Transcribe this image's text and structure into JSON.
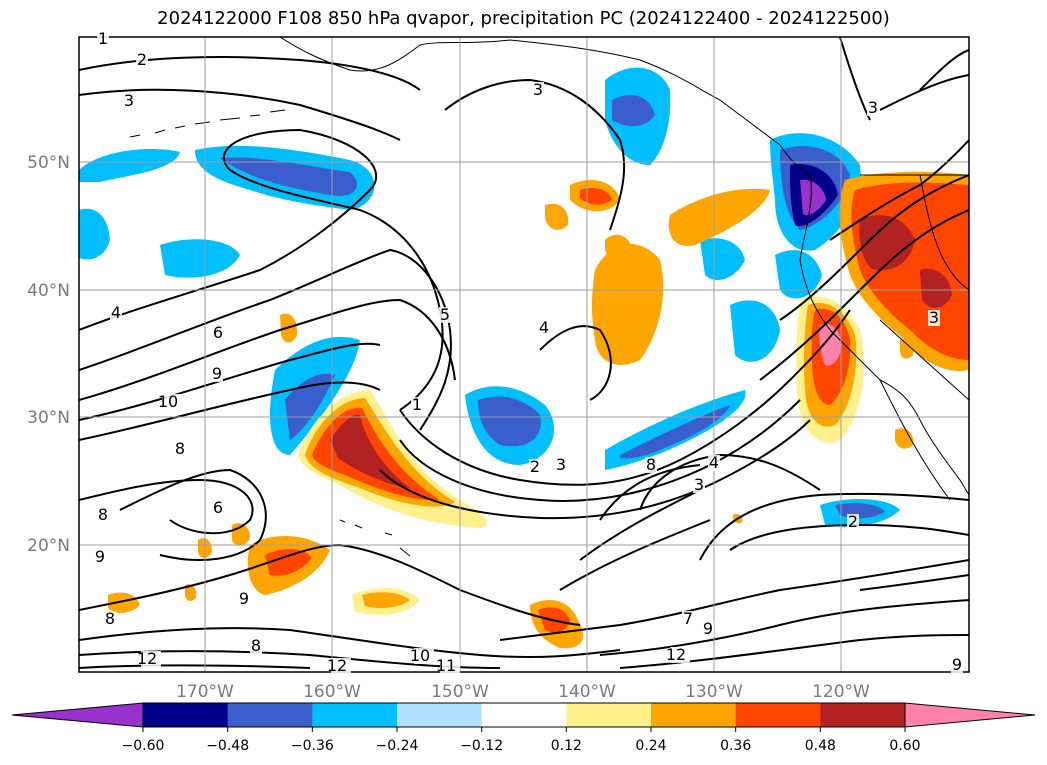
{
  "title": "2024122000 F108 850 hPa qvapor, precipitation PC (2024122400 - 2024122500)",
  "lat_ticks": [
    "50°N",
    "40°N",
    "30°N",
    "20°N"
  ],
  "lon_ticks": [
    "170°W",
    "160°W",
    "150°W",
    "140°W",
    "130°W",
    "120°W"
  ],
  "contour_labels": [
    "1",
    "2",
    "3",
    "3",
    "3",
    "4",
    "6",
    "9",
    "10",
    "5",
    "1",
    "2",
    "3",
    "4",
    "8",
    "6",
    "8",
    "9",
    "9",
    "8",
    "8",
    "10",
    "11",
    "12",
    "12",
    "9",
    "7",
    "3",
    "2",
    "3",
    "9",
    "12",
    "8",
    "4"
  ],
  "colorbar": {
    "ticks": [
      "−0.60",
      "−0.48",
      "−0.36",
      "−0.24",
      "−0.12",
      "0.12",
      "0.24",
      "0.36",
      "0.48",
      "0.60"
    ],
    "colors": [
      "#9932cc",
      "#00008b",
      "#3a5fcd",
      "#00bfff",
      "#b0e2ff",
      "#ffffff",
      "#fff08c",
      "#ffa500",
      "#ff4500",
      "#b22222",
      "#ff82ab"
    ]
  }
}
